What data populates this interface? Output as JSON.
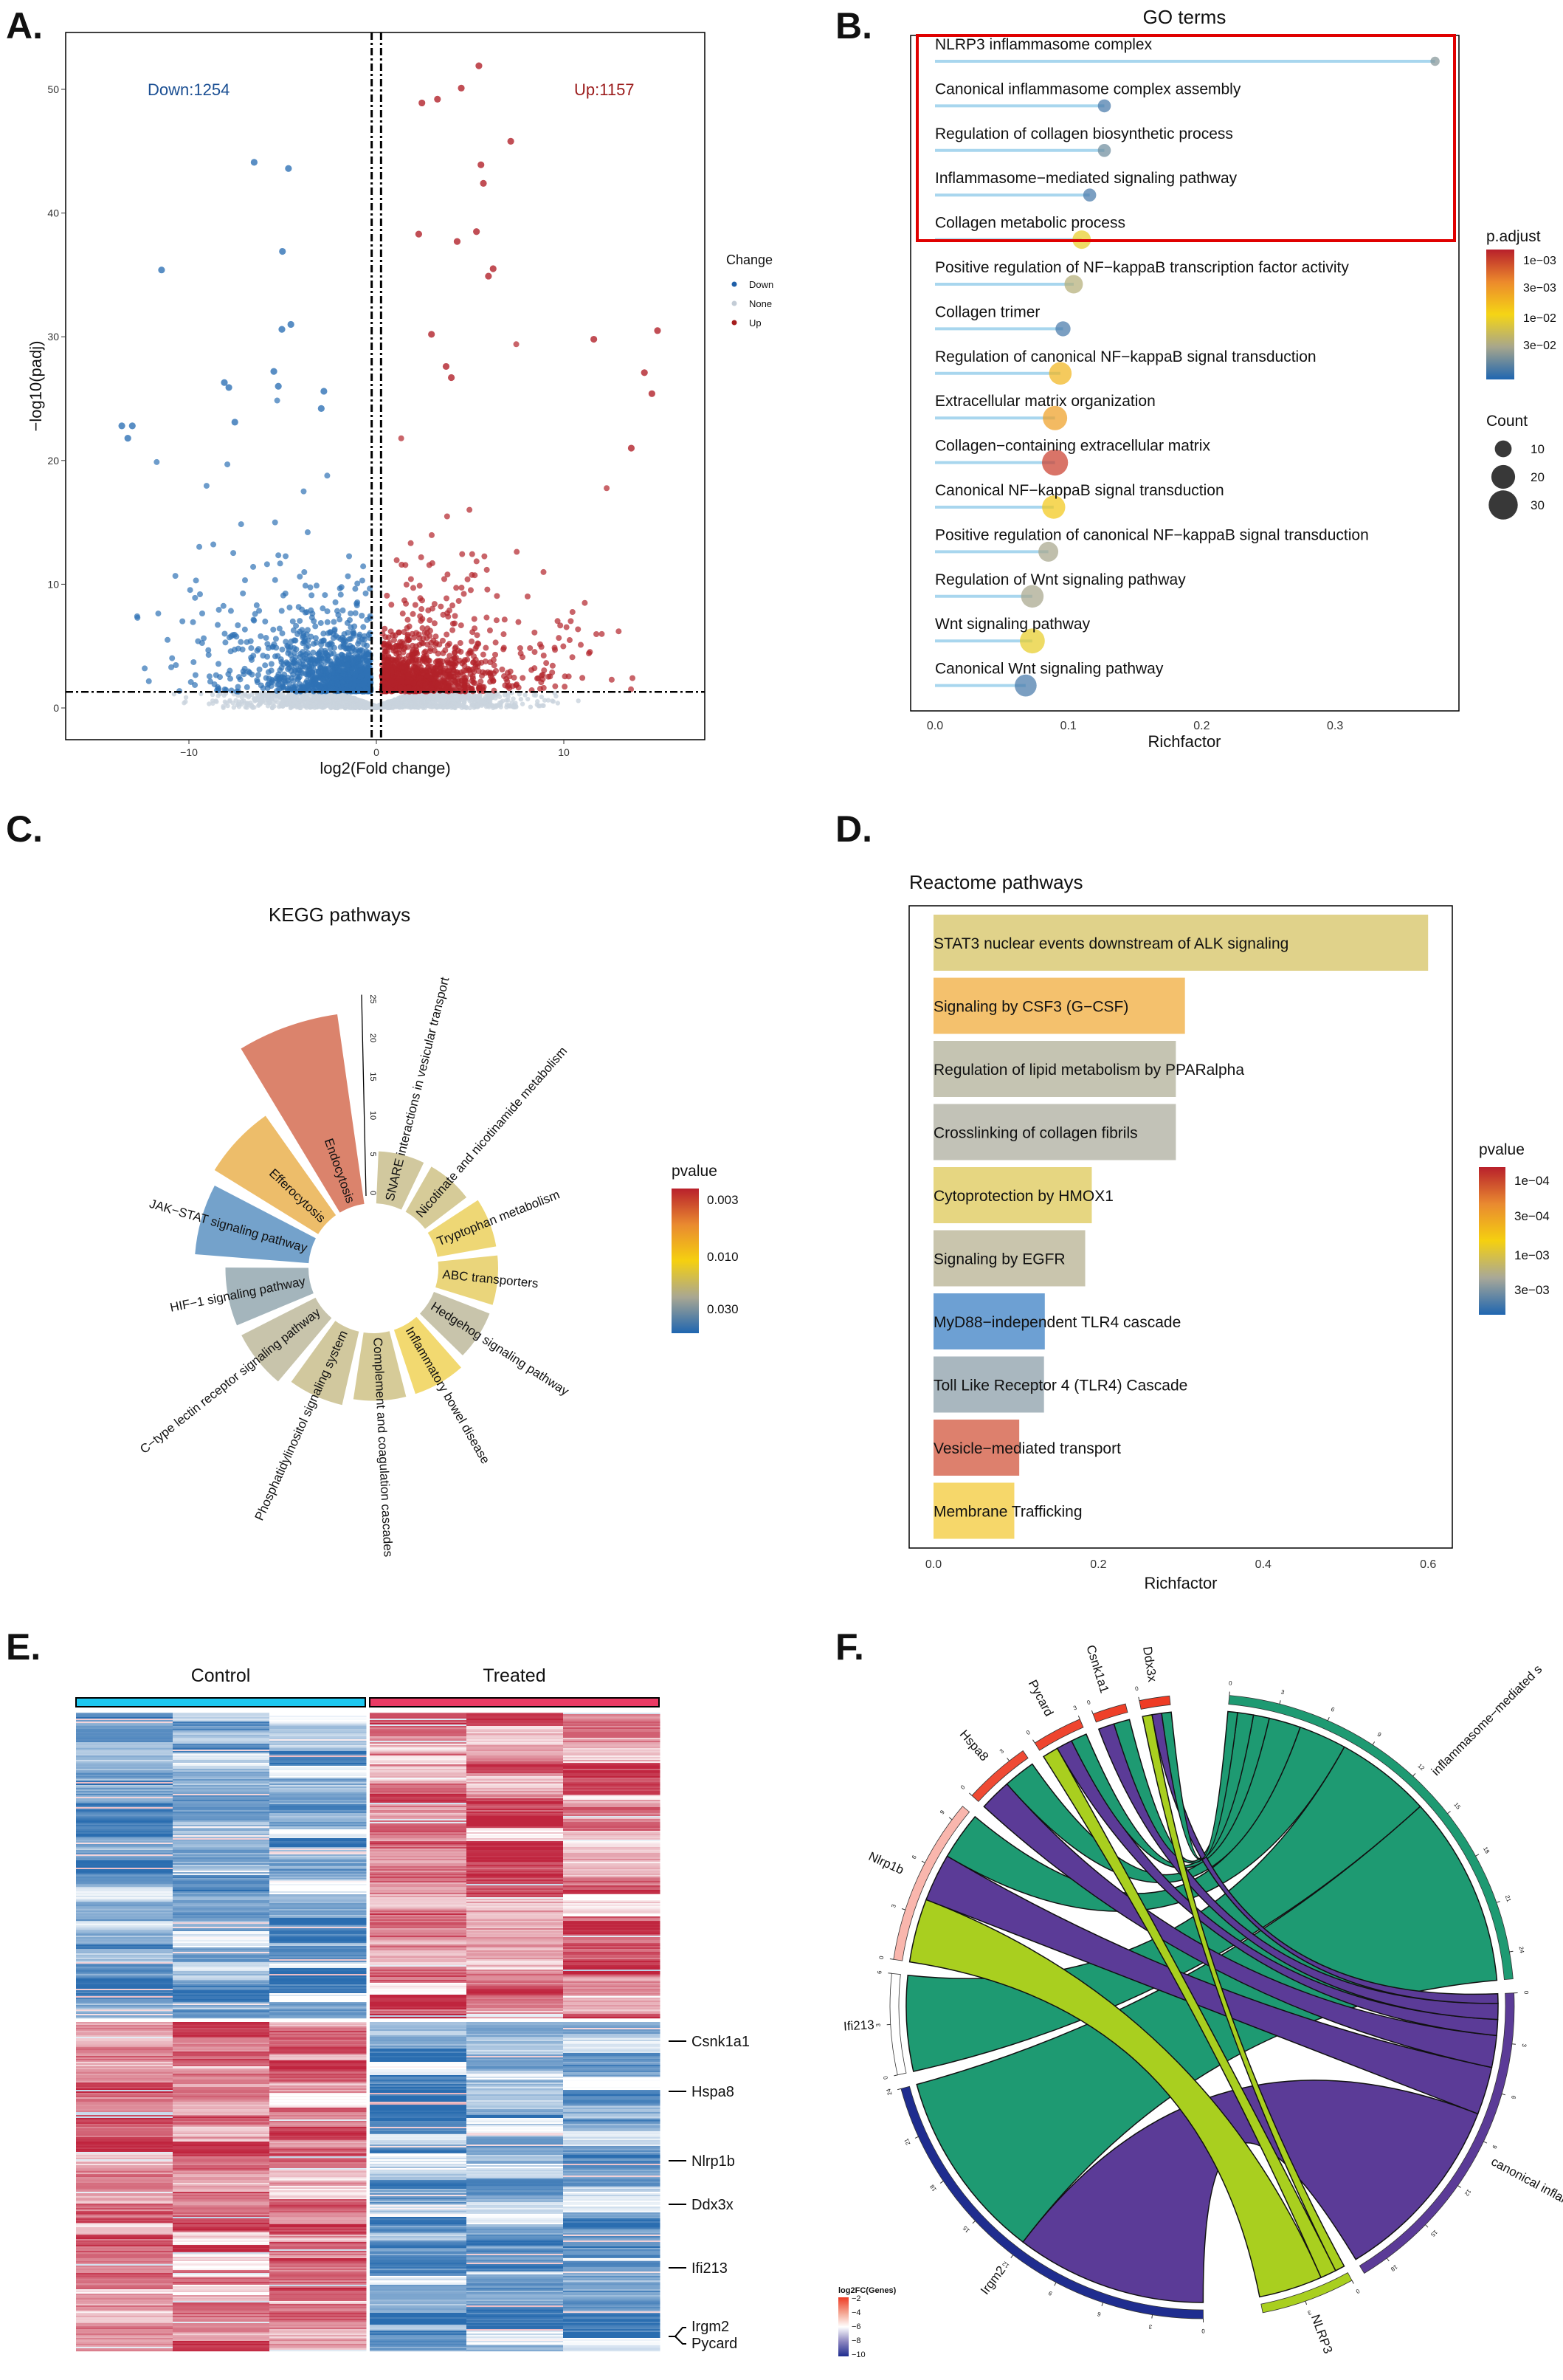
{
  "panels": {
    "A": "A.",
    "B": "B.",
    "C": "C.",
    "D": "D.",
    "E": "E.",
    "F": "F."
  },
  "chart_data": [
    {
      "id": "volcano",
      "type": "scatter",
      "xlabel": "log2(Fold change)",
      "ylabel": "−log10(padj)",
      "xlim": [
        -16.6,
        17.5
      ],
      "ylim": [
        -2.6,
        54.6
      ],
      "xticks": [
        {
          "v": -10,
          "label": "−10"
        },
        {
          "v": 0,
          "label": "0"
        },
        {
          "v": 10,
          "label": "10"
        }
      ],
      "yticks": [
        {
          "v": 0,
          "label": "0"
        },
        {
          "v": 10,
          "label": "10"
        },
        {
          "v": 20,
          "label": "20"
        },
        {
          "v": 30,
          "label": "30"
        },
        {
          "v": 40,
          "label": "40"
        },
        {
          "v": 50,
          "label": "50"
        }
      ],
      "annotations": {
        "down": "Down:1254",
        "up": "Up:1157"
      },
      "counts": {
        "down": 1254,
        "up": 1157
      },
      "thresholds": {
        "log2fc": [
          -0.25,
          0.25
        ],
        "neg_log10_padj": 1.3
      },
      "legend": {
        "title": "Change",
        "placement": "right",
        "items": [
          {
            "label": "Down",
            "color": "#1f5fa8"
          },
          {
            "label": "None",
            "color": "#c3ccd6"
          },
          {
            "label": "Up",
            "color": "#a51d1d"
          }
        ]
      },
      "colors": {
        "down": "#2f72b5",
        "none": "#c9d3dd",
        "up": "#b2222a"
      },
      "highlight_points": {
        "up": [
          [
            5.47,
            51.9
          ],
          [
            4.53,
            50.1
          ],
          [
            3.26,
            49.2
          ],
          [
            2.43,
            48.9
          ],
          [
            7.17,
            45.8
          ],
          [
            5.58,
            43.9
          ],
          [
            5.71,
            42.4
          ],
          [
            2.26,
            38.3
          ],
          [
            5.34,
            38.5
          ],
          [
            4.31,
            37.7
          ],
          [
            6.23,
            35.5
          ],
          [
            5.98,
            34.9
          ],
          [
            15.0,
            30.5
          ],
          [
            11.6,
            29.8
          ],
          [
            14.3,
            27.1
          ],
          [
            14.7,
            25.4
          ],
          [
            13.6,
            21.0
          ],
          [
            2.94,
            30.2
          ],
          [
            3.72,
            27.6
          ],
          [
            4.0,
            26.7
          ]
        ],
        "down": [
          [
            -6.52,
            44.1
          ],
          [
            -4.69,
            43.6
          ],
          [
            -5.01,
            36.9
          ],
          [
            -11.46,
            35.4
          ],
          [
            -4.56,
            31.0
          ],
          [
            -5.04,
            30.6
          ],
          [
            -5.47,
            27.2
          ],
          [
            -8.11,
            26.3
          ],
          [
            -7.87,
            25.9
          ],
          [
            -5.23,
            26.0
          ],
          [
            -2.8,
            25.6
          ],
          [
            -2.94,
            24.2
          ],
          [
            -13.58,
            22.8
          ],
          [
            -13.02,
            22.8
          ],
          [
            -13.26,
            21.8
          ],
          [
            -7.55,
            23.1
          ]
        ]
      }
    },
    {
      "id": "go",
      "type": "scatter",
      "title": "GO terms",
      "xlabel": "Richfactor",
      "xlim": [
        -0.02,
        0.39
      ],
      "xticks": [
        {
          "v": 0,
          "label": "0.0"
        },
        {
          "v": 0.1,
          "label": "0.1"
        },
        {
          "v": 0.2,
          "label": "0.2"
        },
        {
          "v": 0.3,
          "label": "0.3"
        }
      ],
      "highlight_box": {
        "rows": [
          0,
          4
        ],
        "color": "#e00000"
      },
      "terms": [
        {
          "label": "NLRP3 inflammasome complex",
          "rich": 0.375,
          "count": 3,
          "p_adjust": 0.035
        },
        {
          "label": "Canonical inflammasome complex assembly",
          "rich": 0.127,
          "count": 6,
          "p_adjust": 0.045
        },
        {
          "label": "Regulation of collagen biosynthetic process",
          "rich": 0.127,
          "count": 6,
          "p_adjust": 0.038
        },
        {
          "label": "Inflammasome−mediated signaling pathway",
          "rich": 0.116,
          "count": 6,
          "p_adjust": 0.045
        },
        {
          "label": "Collagen metabolic process",
          "rich": 0.11,
          "count": 12,
          "p_adjust": 0.012
        },
        {
          "label": "Positive regulation of NF−kappaB transcription factor activity",
          "rich": 0.104,
          "count": 12,
          "p_adjust": 0.025
        },
        {
          "label": "Collagen trimer",
          "rich": 0.096,
          "count": 8,
          "p_adjust": 0.045
        },
        {
          "label": "Regulation of canonical NF−kappaB signal transduction",
          "rich": 0.094,
          "count": 18,
          "p_adjust": 0.006
        },
        {
          "label": "Extracellular matrix organization",
          "rich": 0.09,
          "count": 21,
          "p_adjust": 0.0042
        },
        {
          "label": "Collagen−containing extracellular matrix",
          "rich": 0.09,
          "count": 24,
          "p_adjust": 0.0011
        },
        {
          "label": "Canonical NF−kappaB signal transduction",
          "rich": 0.089,
          "count": 19,
          "p_adjust": 0.008
        },
        {
          "label": "Positive regulation of canonical NF−kappaB signal transduction",
          "rich": 0.085,
          "count": 14,
          "p_adjust": 0.03
        },
        {
          "label": "Regulation of Wnt signaling pathway",
          "rich": 0.073,
          "count": 18,
          "p_adjust": 0.03
        },
        {
          "label": "Wnt signaling pathway",
          "rich": 0.073,
          "count": 22,
          "p_adjust": 0.012
        },
        {
          "label": "Canonical Wnt signaling pathway",
          "rich": 0.068,
          "count": 17,
          "p_adjust": 0.045
        }
      ],
      "color_legend": {
        "title": "p.adjust",
        "labels": [
          "1e−03",
          "3e−03",
          "1e−02",
          "3e−02"
        ],
        "values": [
          0.001,
          0.003,
          0.01,
          0.03
        ]
      },
      "size_legend": {
        "title": "Count",
        "values": [
          10,
          20,
          30
        ],
        "labels": [
          "10",
          "20",
          "30"
        ]
      }
    },
    {
      "id": "kegg",
      "type": "bar",
      "subtype": "circular",
      "title": "KEGG pathways",
      "radial_ticks": [
        {
          "v": 0,
          "label": "0"
        },
        {
          "v": 5,
          "label": "5"
        },
        {
          "v": 10,
          "label": "10"
        },
        {
          "v": 15,
          "label": "15"
        },
        {
          "v": 20,
          "label": "20"
        },
        {
          "v": 25,
          "label": "25"
        }
      ],
      "categories": [
        "SNARE interactions in vesicular transport",
        "Nicotinate and nicotinamide metabolism",
        "Tryptophan metabolism",
        "ABC transporters",
        "Hedgehog signaling pathway",
        "Inflammatory bowel disease",
        "Complement and coagulation cascades",
        "Phosphatidylinositol signaling system",
        "C−type lectin receptor signaling pathway",
        "HIF−1 signaling pathway",
        "JAK−STAT signaling pathway",
        "Efferocytosis",
        "Endocytosis"
      ],
      "values": [
        5,
        5,
        6,
        6,
        6,
        7,
        7,
        8,
        9,
        9,
        13,
        14,
        23
      ],
      "pvalues": [
        0.022,
        0.02,
        0.012,
        0.013,
        0.027,
        0.011,
        0.02,
        0.022,
        0.027,
        0.036,
        0.048,
        0.007,
        0.0035
      ],
      "color_legend": {
        "title": "pvalue",
        "labels": [
          "0.003",
          "0.010",
          "0.030"
        ],
        "values": [
          0.003,
          0.01,
          0.03
        ]
      }
    },
    {
      "id": "reactome",
      "type": "bar",
      "orientation": "horizontal",
      "title": "Reactome pathways",
      "xlabel": "Richfactor",
      "xlim": [
        -0.0,
        0.62
      ],
      "xticks": [
        {
          "v": 0,
          "label": "0.0"
        },
        {
          "v": 0.2,
          "label": "0.2"
        },
        {
          "v": 0.4,
          "label": "0.4"
        },
        {
          "v": 0.6,
          "label": "0.6"
        }
      ],
      "categories": [
        "STAT3 nuclear events downstream of ALK signaling",
        "Signaling by CSF3 (G−CSF)",
        "Regulation of lipid metabolism by PPARalpha",
        "Crosslinking of collagen fibrils",
        "Cytoprotection by HMOX1",
        "Signaling by EGFR",
        "MyD88−independent TLR4 cascade",
        "Toll Like Receptor 4 (TLR4) Cascade",
        "Vesicle−mediated transport",
        "Membrane Trafficking"
      ],
      "values": [
        0.6,
        0.305,
        0.294,
        0.294,
        0.192,
        0.184,
        0.135,
        0.134,
        0.104,
        0.098
      ],
      "pvalues": [
        0.0016,
        0.0004,
        0.0028,
        0.003,
        0.0014,
        0.0026,
        0.0055,
        0.0036,
        0.00012,
        0.0008
      ],
      "color_legend": {
        "title": "pvalue",
        "labels": [
          "1e−04",
          "3e−04",
          "1e−03",
          "3e−03"
        ],
        "values": [
          0.0001,
          0.0003,
          0.001,
          0.003
        ]
      }
    },
    {
      "id": "heatmap",
      "type": "heatmap",
      "groups": [
        {
          "label": "Control",
          "color": "#1ec8f0",
          "samples": 3
        },
        {
          "label": "Treated",
          "color": "#ea3a64",
          "samples": 3
        }
      ],
      "row_clusters": [
        "up_in_treated",
        "down_in_treated"
      ],
      "colors": {
        "low": "#2a6db0",
        "mid": "#ffffff",
        "high": "#c0243e"
      },
      "gene_labels": [
        "Csnk1a1",
        "Hspa8",
        "Nlrp1b",
        "Ddx3x",
        "Ifi213",
        "Irgm2",
        "Pycard"
      ]
    },
    {
      "id": "chord",
      "type": "chord",
      "terms": [
        {
          "label": "inflammasome−mediated s",
          "color": "#1e9a72"
        },
        {
          "label": "canonical inflamma",
          "color": "#5b3b97"
        },
        {
          "label": "NLRP3",
          "color": "#a9cf1f"
        }
      ],
      "genes": [
        {
          "label": "Irgm2",
          "log2fc": -10
        },
        {
          "label": "Ifi213",
          "log2fc": -6
        },
        {
          "label": "Nlrp1b",
          "log2fc": -4.5
        },
        {
          "label": "Hspa8",
          "log2fc": -2.3
        },
        {
          "label": "Pycard",
          "log2fc": -2.2
        },
        {
          "label": "Csnk1a1",
          "log2fc": -2.1
        },
        {
          "label": "Ddx3x",
          "log2fc": -2
        }
      ],
      "links": [
        {
          "gene": "Irgm2",
          "term": "canonical inflamma",
          "value": 12
        },
        {
          "gene": "Irgm2",
          "term": "inflammasome−mediated s",
          "value": 12
        },
        {
          "gene": "Ifi213",
          "term": "inflammasome−mediated s",
          "value": 6
        },
        {
          "gene": "Nlrp1b",
          "term": "NLRP3",
          "value": 4
        },
        {
          "gene": "Nlrp1b",
          "term": "canonical inflamma",
          "value": 3
        },
        {
          "gene": "Nlrp1b",
          "term": "inflammasome−mediated s",
          "value": 3
        },
        {
          "gene": "Hspa8",
          "term": "canonical inflamma",
          "value": 2
        },
        {
          "gene": "Hspa8",
          "term": "inflammasome−mediated s",
          "value": 2
        },
        {
          "gene": "Pycard",
          "term": "NLRP3",
          "value": 1
        },
        {
          "gene": "Pycard",
          "term": "canonical inflamma",
          "value": 1
        },
        {
          "gene": "Pycard",
          "term": "inflammasome−mediated s",
          "value": 1
        },
        {
          "gene": "Csnk1a1",
          "term": "canonical inflamma",
          "value": 1
        },
        {
          "gene": "Csnk1a1",
          "term": "inflammasome−mediated s",
          "value": 1
        },
        {
          "gene": "Ddx3x",
          "term": "NLRP3",
          "value": 0.6
        },
        {
          "gene": "Ddx3x",
          "term": "canonical inflamma",
          "value": 0.6
        },
        {
          "gene": "Ddx3x",
          "term": "inflammasome−mediated s",
          "value": 0.6
        }
      ],
      "color_legend": {
        "title": "log2FC(Genes)",
        "labels": [
          "−2",
          "−4",
          "−6",
          "−8",
          "−10"
        ],
        "values": [
          -2,
          -4,
          -6,
          -8,
          -10
        ]
      }
    }
  ]
}
